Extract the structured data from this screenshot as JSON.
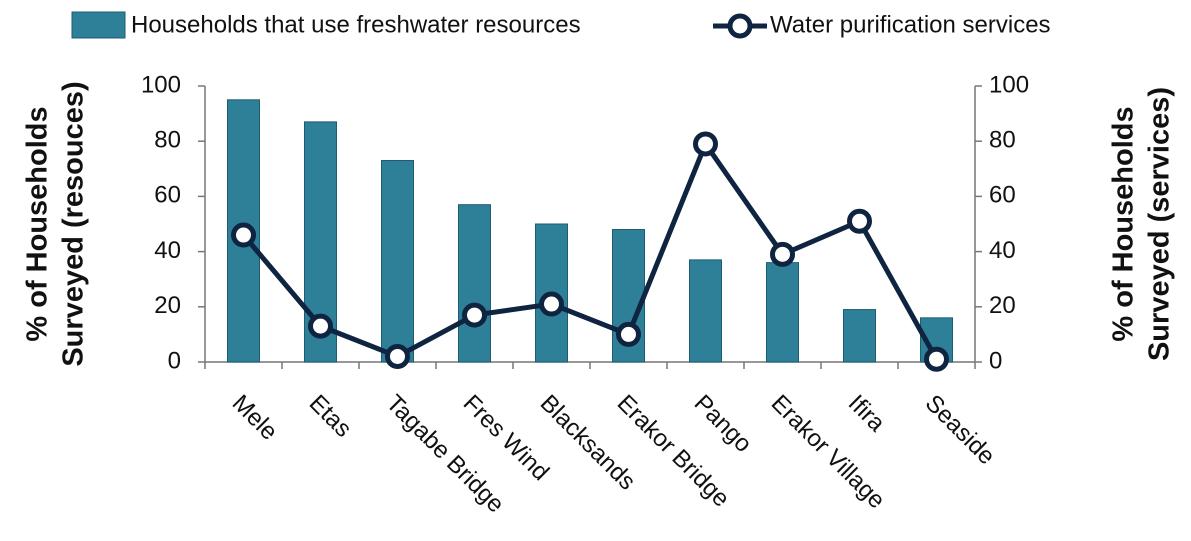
{
  "chart_data": {
    "type": "bar-line",
    "categories": [
      "Mele",
      "Etas",
      "Tagabe Bridge",
      "Fres Wind",
      "Blacksands",
      "Erakor Bridge",
      "Pango",
      "Erakor Village",
      "Ifira",
      "Seaside"
    ],
    "series": [
      {
        "name": "Households that use freshwater resources",
        "type": "bar",
        "color": "#2e7f98",
        "values": [
          95,
          87,
          73,
          57,
          50,
          48,
          37,
          36,
          19,
          16
        ]
      },
      {
        "name": "Water purification services",
        "type": "line",
        "axis": "y2",
        "color": "#0f2440",
        "values": [
          46,
          13,
          2,
          17,
          21,
          10,
          79,
          39,
          51,
          1
        ]
      }
    ],
    "ylabel": [
      "% of Households",
      "Surveyed (resouces)"
    ],
    "y2label": [
      "% of Households",
      "Surveyed (services)"
    ],
    "ylim": [
      0,
      100
    ],
    "yticks": [
      0,
      20,
      40,
      60,
      80,
      100
    ],
    "y2lim": [
      0,
      100
    ],
    "y2ticks": [
      0,
      20,
      40,
      60,
      80,
      100
    ],
    "legend": "top"
  }
}
